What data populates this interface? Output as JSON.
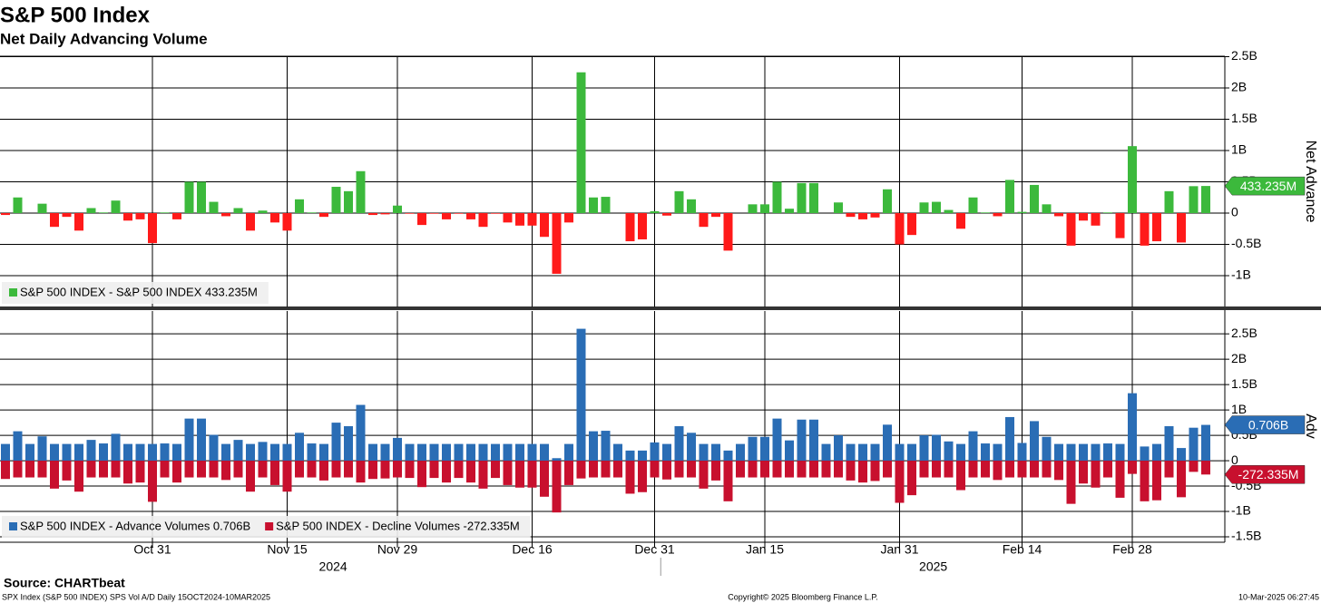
{
  "chart_data": {
    "type": "bar",
    "title": "S&P 500 Index",
    "subtitle": "Net Daily Advancing Volume",
    "source": "Source: CHARTbeat",
    "footer_left": "SPX Index (S&P 500 INDEX) SPS Vol A/D  Daily 15OCT2024-10MAR2025",
    "footer_center": "Copyright© 2025 Bloomberg Finance L.P.",
    "footer_right": "10-Mar-2025 06:27:45",
    "year_labels": [
      "2024",
      "2025"
    ],
    "grid": true,
    "categories": [
      null,
      null,
      null,
      null,
      null,
      null,
      null,
      null,
      null,
      null,
      null,
      null,
      "Oct 31",
      null,
      null,
      null,
      null,
      null,
      null,
      null,
      null,
      null,
      null,
      "Nov 15",
      null,
      null,
      null,
      null,
      null,
      null,
      null,
      null,
      "Nov 29",
      null,
      null,
      null,
      null,
      null,
      null,
      null,
      null,
      null,
      null,
      "Dec 16",
      null,
      null,
      null,
      null,
      null,
      null,
      null,
      null,
      null,
      "Dec 31",
      null,
      null,
      null,
      null,
      null,
      null,
      null,
      null,
      "Jan 15",
      null,
      null,
      null,
      null,
      null,
      null,
      null,
      null,
      null,
      null,
      "Jan 31",
      null,
      null,
      null,
      null,
      null,
      null,
      null,
      null,
      null,
      "Feb 14",
      null,
      null,
      null,
      null,
      null,
      null,
      null,
      null,
      "Feb 28",
      null,
      null,
      null,
      null,
      null,
      null
    ],
    "panels": [
      {
        "ylabel": "Net Advance",
        "ylim": [
          -1.5,
          2.5
        ],
        "yticks": [
          {
            "value": -1,
            "label": "-1B"
          },
          {
            "value": -0.5,
            "label": "-0.5B"
          },
          0,
          {
            "value": 0.5,
            "label": "0.5B"
          },
          {
            "value": 1,
            "label": "1B"
          },
          {
            "value": 1.5,
            "label": "1.5B"
          },
          {
            "value": 2,
            "label": "2B"
          },
          {
            "value": 2.5,
            "label": "2.5B"
          }
        ],
        "series": [
          {
            "name": "S&P 500 INDEX - S&P 500 INDEX 433.235M",
            "color": "#3cb93c",
            "negative_color": "#ff1a1a",
            "values": [
              -0.03,
              0.25,
              0.0,
              0.15,
              -0.22,
              -0.06,
              -0.28,
              0.08,
              0.01,
              0.2,
              -0.12,
              -0.1,
              -0.48,
              0.01,
              -0.1,
              0.5,
              0.5,
              0.18,
              -0.05,
              0.08,
              -0.28,
              0.04,
              -0.15,
              -0.28,
              0.22,
              0.01,
              -0.06,
              0.42,
              0.35,
              0.67,
              -0.03,
              -0.02,
              0.12,
              -0.01,
              -0.19,
              -0.01,
              -0.1,
              -0.01,
              -0.1,
              -0.22,
              -0.01,
              -0.15,
              -0.2,
              -0.2,
              -0.38,
              -0.97,
              -0.15,
              2.25,
              0.25,
              0.26,
              0.0,
              -0.45,
              -0.42,
              0.03,
              -0.04,
              0.35,
              0.22,
              -0.22,
              -0.06,
              -0.6,
              0.0,
              0.14,
              0.14,
              0.5,
              0.07,
              0.48,
              0.48,
              0.0,
              0.17,
              -0.06,
              -0.1,
              -0.07,
              0.38,
              -0.5,
              -0.35,
              0.17,
              0.18,
              0.05,
              -0.25,
              0.25,
              0.01,
              -0.05,
              0.53,
              0.02,
              0.45,
              0.14,
              -0.05,
              -0.52,
              -0.12,
              -0.2,
              0.01,
              -0.4,
              1.07,
              -0.52,
              -0.45,
              0.35,
              -0.47,
              0.43,
              0.433235
            ],
            "value_labels": [
              null,
              null,
              null,
              null,
              null,
              null,
              null,
              null,
              null,
              null,
              null,
              null,
              null,
              null,
              null,
              null,
              null,
              null,
              null,
              null,
              null,
              null,
              null,
              null,
              null,
              null,
              null,
              null,
              null,
              null,
              null,
              null,
              null,
              null,
              null,
              null,
              null,
              null,
              null,
              null,
              null,
              null,
              null,
              null,
              null,
              null,
              null,
              null,
              null,
              null,
              null,
              null,
              null,
              null,
              null,
              null,
              null,
              null,
              null,
              null,
              null,
              null,
              null,
              null,
              null,
              null,
              null,
              null,
              null,
              null,
              null,
              null,
              null,
              null,
              null,
              null,
              null,
              null,
              null,
              null,
              null,
              null,
              null,
              null,
              null,
              null,
              null,
              null,
              null,
              null,
              null,
              null,
              null,
              null,
              null,
              null,
              null,
              null,
              "433.235M"
            ]
          }
        ]
      },
      {
        "ylabel": "Adv",
        "ylim": [
          -1.6,
          2.95
        ],
        "yticks": [
          {
            "value": -1.5,
            "label": "-1.5B"
          },
          {
            "value": -1,
            "label": "-1B"
          },
          {
            "value": -0.5,
            "label": "-0.5B"
          },
          0,
          {
            "value": 0.5,
            "label": "0.5B"
          },
          {
            "value": 1,
            "label": "1B"
          },
          {
            "value": 1.5,
            "label": "1.5B"
          },
          {
            "value": 2,
            "label": "2B"
          },
          {
            "value": 2.5,
            "label": "2.5B"
          }
        ],
        "series": [
          {
            "name": "S&P 500 INDEX - Advance Volumes 0.706B",
            "color": "#2a6db5",
            "values": [
              0.33,
              0.58,
              0.33,
              0.48,
              0.33,
              0.33,
              0.33,
              0.41,
              0.34,
              0.53,
              0.33,
              0.33,
              0.33,
              0.34,
              0.33,
              0.83,
              0.83,
              0.51,
              0.33,
              0.41,
              0.33,
              0.37,
              0.33,
              0.33,
              0.55,
              0.34,
              0.33,
              0.75,
              0.68,
              1.1,
              0.33,
              0.33,
              0.45,
              0.33,
              0.33,
              0.33,
              0.33,
              0.33,
              0.33,
              0.33,
              0.33,
              0.33,
              0.33,
              0.33,
              0.33,
              0.05,
              0.33,
              2.6,
              0.58,
              0.59,
              0.33,
              0.2,
              0.2,
              0.36,
              0.33,
              0.68,
              0.55,
              0.33,
              0.33,
              0.2,
              0.33,
              0.47,
              0.47,
              0.83,
              0.4,
              0.81,
              0.81,
              0.33,
              0.5,
              0.33,
              0.33,
              0.33,
              0.71,
              0.33,
              0.33,
              0.5,
              0.51,
              0.38,
              0.33,
              0.58,
              0.34,
              0.33,
              0.86,
              0.35,
              0.78,
              0.47,
              0.33,
              0.33,
              0.33,
              0.33,
              0.34,
              0.33,
              1.33,
              0.28,
              0.33,
              0.68,
              0.25,
              0.65,
              0.706
            ],
            "value_labels": [
              null,
              null,
              null,
              null,
              null,
              null,
              null,
              null,
              null,
              null,
              null,
              null,
              null,
              null,
              null,
              null,
              null,
              null,
              null,
              null,
              null,
              null,
              null,
              null,
              null,
              null,
              null,
              null,
              null,
              null,
              null,
              null,
              null,
              null,
              null,
              null,
              null,
              null,
              null,
              null,
              null,
              null,
              null,
              null,
              null,
              null,
              null,
              null,
              null,
              null,
              null,
              null,
              null,
              null,
              null,
              null,
              null,
              null,
              null,
              null,
              null,
              null,
              null,
              null,
              null,
              null,
              null,
              null,
              null,
              null,
              null,
              null,
              null,
              null,
              null,
              null,
              null,
              null,
              null,
              null,
              null,
              null,
              null,
              null,
              null,
              null,
              null,
              null,
              null,
              null,
              null,
              null,
              null,
              null,
              null,
              null,
              null,
              null,
              "0.706B"
            ]
          },
          {
            "name": "S&P 500 INDEX - Decline Volumes -272.335M",
            "color": "#c8102e",
            "values": [
              -0.36,
              -0.33,
              -0.33,
              -0.33,
              -0.55,
              -0.39,
              -0.61,
              -0.33,
              -0.33,
              -0.33,
              -0.45,
              -0.43,
              -0.81,
              -0.33,
              -0.43,
              -0.33,
              -0.33,
              -0.33,
              -0.38,
              -0.33,
              -0.61,
              -0.33,
              -0.48,
              -0.61,
              -0.33,
              -0.33,
              -0.39,
              -0.33,
              -0.33,
              -0.43,
              -0.36,
              -0.35,
              -0.33,
              -0.34,
              -0.52,
              -0.34,
              -0.43,
              -0.34,
              -0.43,
              -0.55,
              -0.34,
              -0.48,
              -0.53,
              -0.53,
              -0.71,
              -1.02,
              -0.48,
              -0.35,
              -0.33,
              -0.33,
              -0.33,
              -0.65,
              -0.62,
              -0.33,
              -0.37,
              -0.33,
              -0.33,
              -0.55,
              -0.39,
              -0.8,
              -0.33,
              -0.33,
              -0.33,
              -0.33,
              -0.33,
              -0.33,
              -0.33,
              -0.33,
              -0.33,
              -0.39,
              -0.43,
              -0.4,
              -0.33,
              -0.83,
              -0.68,
              -0.33,
              -0.33,
              -0.33,
              -0.58,
              -0.33,
              -0.33,
              -0.38,
              -0.33,
              -0.33,
              -0.33,
              -0.33,
              -0.38,
              -0.85,
              -0.45,
              -0.53,
              -0.33,
              -0.73,
              -0.26,
              -0.8,
              -0.78,
              -0.33,
              -0.72,
              -0.22,
              -0.272335
            ],
            "value_labels": [
              null,
              null,
              null,
              null,
              null,
              null,
              null,
              null,
              null,
              null,
              null,
              null,
              null,
              null,
              null,
              null,
              null,
              null,
              null,
              null,
              null,
              null,
              null,
              null,
              null,
              null,
              null,
              null,
              null,
              null,
              null,
              null,
              null,
              null,
              null,
              null,
              null,
              null,
              null,
              null,
              null,
              null,
              null,
              null,
              null,
              null,
              null,
              null,
              null,
              null,
              null,
              null,
              null,
              null,
              null,
              null,
              null,
              null,
              null,
              null,
              null,
              null,
              null,
              null,
              null,
              null,
              null,
              null,
              null,
              null,
              null,
              null,
              null,
              null,
              null,
              null,
              null,
              null,
              null,
              null,
              null,
              null,
              null,
              null,
              null,
              null,
              null,
              null,
              null,
              null,
              null,
              null,
              null,
              null,
              null,
              null,
              null,
              null,
              "-272.335M"
            ]
          }
        ]
      }
    ]
  }
}
